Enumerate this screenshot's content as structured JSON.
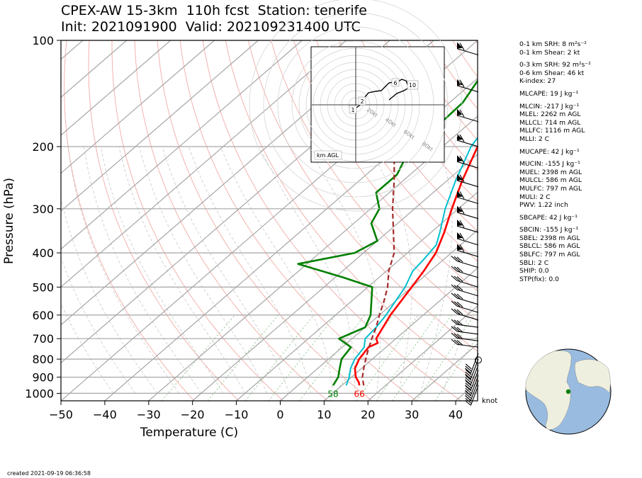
{
  "header": {
    "title_line1": "CPEX-AW 15-3km  110h fcst  Station: tenerife",
    "title_line2": "Init: 2021091900  Valid: 202109231400 UTC"
  },
  "stats": [
    "0-1 km SRH: 8 m²s⁻²",
    "0-1 km Shear: 2 kt",
    "0-3 km SRH: 92 m²s⁻²",
    "0-6 km Shear: 46 kt",
    "K-index: 27",
    "MLCAPE: 19 J kg⁻¹",
    "MLCIN: -217 J kg⁻¹",
    "MLEL: 2262 m AGL",
    "MLLCL: 714 m AGL",
    "MLLFC: 1116 m AGL",
    "MLLI: 2 C",
    "MUCAPE: 42 J kg⁻¹",
    "MUCIN: -155 J kg⁻¹",
    "MUEL: 2398 m AGL",
    "MULCL: 586 m AGL",
    "MULFC: 797 m AGL",
    "MULI: 2 C",
    "PWV: 1.22 inch",
    "SBCAPE: 42 J kg⁻¹",
    "SBCIN: -155 J kg⁻¹",
    "SBEL: 2398 m AGL",
    "SBLCL: 586 m AGL",
    "SBLFC: 797 m AGL",
    "SBLI: 2 C",
    "SHIP: 0.0",
    "STP(fix): 0.0"
  ],
  "footer": {
    "created": "created 2021-09-19 06:36:58"
  },
  "colors": {
    "temperature": "#ff0000",
    "dewpoint": "#008000",
    "wetbulb": "#00bfcf",
    "parcel": "#a52a2a",
    "globe_ocean": "#99bbe0",
    "globe_land": "#efefdf"
  },
  "chart_data": {
    "type": "line",
    "title": "CPEX-AW 15-3km  110h fcst  Station: tenerife",
    "subtitle": "Init: 2021091900  Valid: 202109231400 UTC",
    "xlabel": "Temperature (C)",
    "ylabel": "Pressure (hPa)",
    "xlim": [
      -50,
      45
    ],
    "ylim": [
      1050,
      100
    ],
    "y_scale": "log",
    "x_ticks": [
      -50,
      -40,
      -30,
      -20,
      -10,
      0,
      10,
      20,
      30,
      40
    ],
    "y_ticks": [
      100,
      200,
      300,
      400,
      500,
      600,
      700,
      800,
      900,
      1000
    ],
    "wind_unit_label": "knot",
    "series": [
      {
        "id": "temperature",
        "color": "#ff0000",
        "points": [
          [
            100,
            -20
          ],
          [
            120,
            -18
          ],
          [
            140,
            -24.5
          ],
          [
            160,
            -25
          ],
          [
            180,
            -24
          ],
          [
            200,
            -22
          ],
          [
            250,
            -16.5
          ],
          [
            300,
            -11.5
          ],
          [
            350,
            -7
          ],
          [
            400,
            -3.5
          ],
          [
            450,
            -1.5
          ],
          [
            500,
            0
          ],
          [
            600,
            2.5
          ],
          [
            700,
            5.5
          ],
          [
            720,
            7
          ],
          [
            740,
            6
          ],
          [
            800,
            7
          ],
          [
            850,
            8.5
          ],
          [
            900,
            11
          ],
          [
            930,
            13
          ],
          [
            950,
            14
          ]
        ]
      },
      {
        "id": "dewpoint",
        "color": "#008000",
        "points": [
          [
            100,
            -40
          ],
          [
            115,
            -42
          ],
          [
            125,
            -40
          ],
          [
            150,
            -37
          ],
          [
            180,
            -36.5
          ],
          [
            200,
            -36.5
          ],
          [
            220,
            -35
          ],
          [
            240,
            -33
          ],
          [
            270,
            -33
          ],
          [
            300,
            -28
          ],
          [
            330,
            -26
          ],
          [
            370,
            -20
          ],
          [
            400,
            -22
          ],
          [
            430,
            -32
          ],
          [
            470,
            -18
          ],
          [
            500,
            -9
          ],
          [
            600,
            -2
          ],
          [
            650,
            0
          ],
          [
            700,
            -3
          ],
          [
            740,
            2
          ],
          [
            800,
            3
          ],
          [
            850,
            5
          ],
          [
            900,
            7
          ],
          [
            950,
            8
          ]
        ]
      },
      {
        "id": "wetbulb",
        "color": "#00bfcf",
        "points": [
          [
            100,
            -20
          ],
          [
            120,
            -22
          ],
          [
            140,
            -26
          ],
          [
            160,
            -26.5
          ],
          [
            180,
            -25
          ],
          [
            200,
            -23.5
          ],
          [
            250,
            -18
          ],
          [
            300,
            -13
          ],
          [
            350,
            -8
          ],
          [
            380,
            -5.5
          ],
          [
            420,
            -4.5
          ],
          [
            450,
            -4
          ],
          [
            500,
            -1.5
          ],
          [
            600,
            1.5
          ],
          [
            650,
            2.5
          ],
          [
            700,
            3
          ],
          [
            740,
            5
          ],
          [
            800,
            6
          ],
          [
            850,
            7.5
          ],
          [
            900,
            9.5
          ],
          [
            950,
            11
          ]
        ]
      },
      {
        "id": "parcel",
        "color": "#a52a2a",
        "dashed": true,
        "points": [
          [
            950,
            15
          ],
          [
            900,
            12.5
          ],
          [
            850,
            10.5
          ],
          [
            800,
            8.5
          ],
          [
            750,
            6.5
          ],
          [
            700,
            4.5
          ],
          [
            650,
            2.5
          ],
          [
            600,
            0
          ],
          [
            550,
            -2.5
          ],
          [
            500,
            -5.5
          ],
          [
            450,
            -9.5
          ],
          [
            400,
            -13
          ],
          [
            300,
            -25
          ],
          [
            250,
            -32
          ],
          [
            200,
            -41
          ],
          [
            150,
            -53
          ],
          [
            110,
            -66
          ]
        ]
      }
    ],
    "surface_labels": [
      {
        "series": "dewpoint",
        "text": "58"
      },
      {
        "series": "temperature",
        "text": "66"
      }
    ],
    "wind_barbs_pressure_hpa": [
      110,
      140,
      170,
      200,
      230,
      260,
      290,
      320,
      350,
      380,
      410,
      440,
      470,
      500,
      530,
      560,
      590,
      620,
      650,
      680,
      710,
      740,
      770,
      800,
      830,
      860,
      890,
      920,
      950
    ],
    "hodograph": {
      "ring_labels": [
        "20kt",
        "40kt",
        "60kt",
        "80kt"
      ],
      "height_labels": [
        "1",
        "2",
        "6",
        "10"
      ],
      "corner_label": "km AGL"
    }
  }
}
